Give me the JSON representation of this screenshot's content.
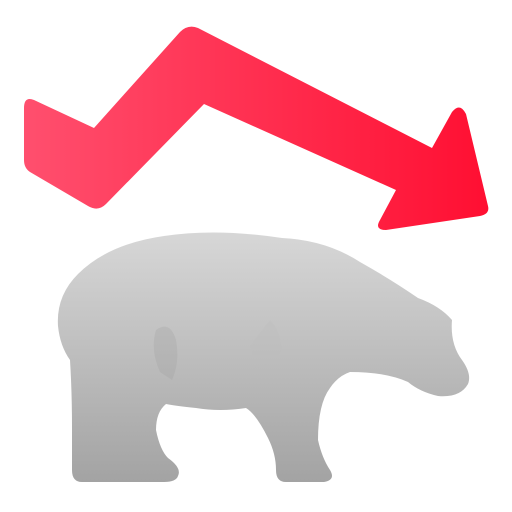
{
  "icon": {
    "name": "bear-market-icon",
    "colors": {
      "arrow_start": "#ff4f6e",
      "arrow_end": "#ff0f32",
      "bear_top": "#d7d7d7",
      "bear_bottom": "#a3a3a3",
      "bear_shade": "#bcbcbc",
      "background": "#ffffff"
    }
  }
}
